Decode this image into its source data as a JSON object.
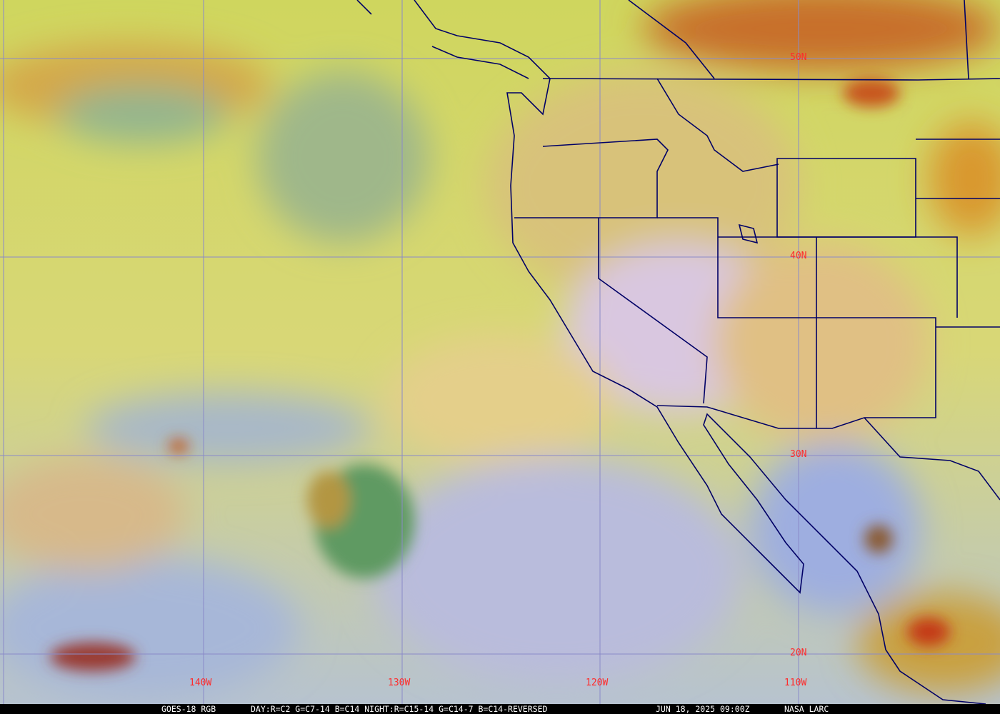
{
  "product": "GOES-18 RGB",
  "recipe": "DAY:R=C2 G=C7-14 B=C14 NIGHT:R=C15-14 G=C14-7 B=C14-REVERSED",
  "datetime": "JUN 18, 2025 09:00Z",
  "credit": "NASA LARC",
  "latitude_labels": [
    "50N",
    "40N",
    "30N",
    "20N"
  ],
  "longitude_labels": [
    "140W",
    "130W",
    "120W",
    "110W"
  ],
  "colors": {
    "grid": "#8a8ac8",
    "boundaries": "#000066",
    "labels": "#ff2a2a",
    "caption_bg": "#000000",
    "caption_text": "#ffffff"
  }
}
